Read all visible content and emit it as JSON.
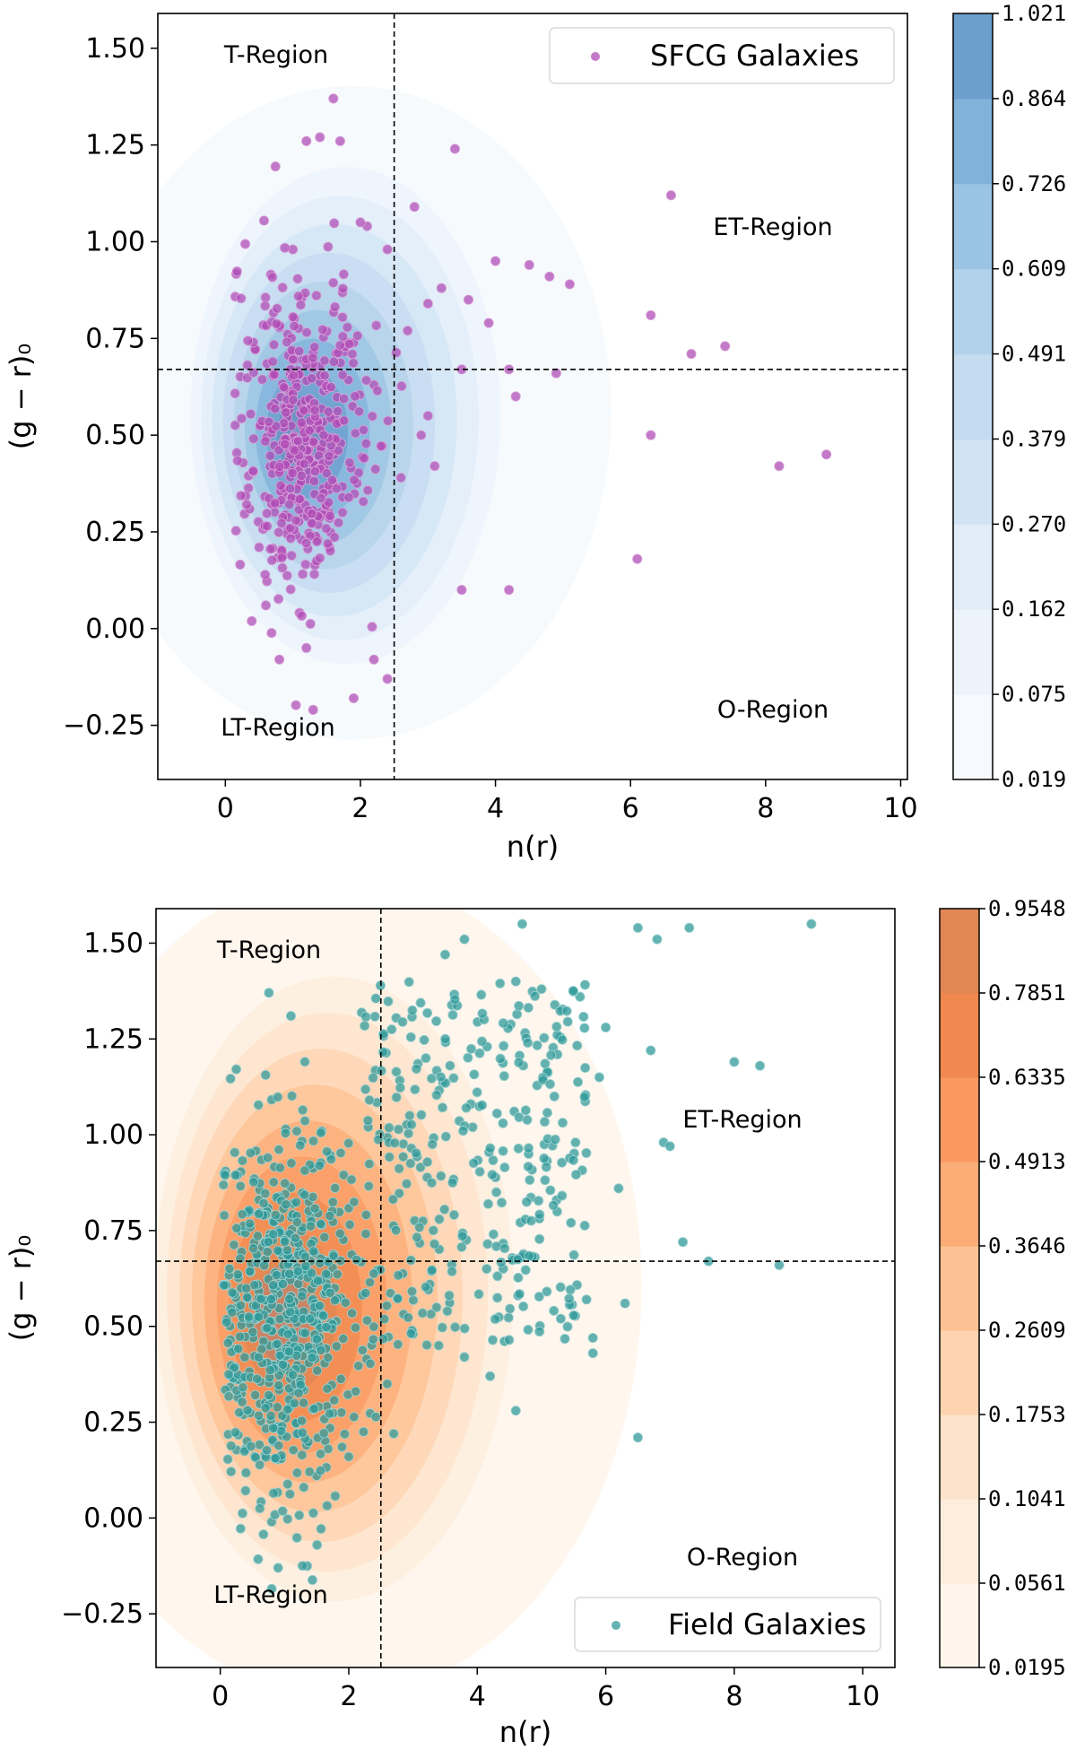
{
  "chart_data": [
    {
      "type": "scatter",
      "title": "",
      "xlabel": "n(r)",
      "ylabel": "(g − r)₀",
      "xlim": [
        -1,
        10.1
      ],
      "ylim": [
        -0.39,
        1.59
      ],
      "xticks": [
        0,
        2,
        4,
        6,
        8,
        10
      ],
      "xtick_labels": [
        "0",
        "2",
        "4",
        "6",
        "8",
        "10"
      ],
      "yticks": [
        -0.25,
        0,
        0.25,
        0.5,
        0.75,
        1.0,
        1.25,
        1.5
      ],
      "ytick_labels": [
        "−0.25",
        "0.00",
        "0.25",
        "0.50",
        "0.75",
        "1.00",
        "1.25",
        "1.50"
      ],
      "divider_x": 2.5,
      "divider_y": 0.67,
      "regions": [
        {
          "label": "T-Region",
          "x": 0.7,
          "y": 1.47
        },
        {
          "label": "ET-Region",
          "x": 8.1,
          "y": 1.02
        },
        {
          "label": "LT-Region",
          "x": 0.75,
          "y": -0.26
        },
        {
          "label": "O-Region",
          "x": 8.1,
          "y": -0.21
        }
      ],
      "legend": {
        "label": "SFCG Galaxies",
        "location": "upper right"
      },
      "point_color": "#b04cb6",
      "point_edge": "#d9a3da",
      "density_color": "#3a7ab8",
      "density_center": [
        1.15,
        0.49
      ],
      "density_spread": [
        0.78,
        0.26
      ],
      "colorbar": {
        "levels": [
          "0.019",
          "0.075",
          "0.162",
          "0.270",
          "0.379",
          "0.491",
          "0.609",
          "0.726",
          "0.864",
          "1.021"
        ],
        "colors": [
          "#f6f9fd",
          "#ecf3fb",
          "#e0ecf8",
          "#d2e4f4",
          "#c4dbf0",
          "#b2d1ea",
          "#9ac4e3",
          "#80b2da",
          "#6d9fcd",
          "#6b8fbd"
        ]
      },
      "series": [
        {
          "name": "SFCG Galaxies",
          "x": [
            1.6,
            1.2,
            1.4,
            1.7,
            3.4,
            6.6,
            2.8,
            2.1,
            2.4,
            4.0,
            4.5,
            4.8,
            5.1,
            3.2,
            3.6,
            3.9,
            6.3,
            6.9,
            7.4,
            4.2,
            3.5,
            3.0,
            4.9,
            4.3,
            6.3,
            8.9,
            8.2,
            2.9,
            6.1,
            3.5,
            4.2,
            2.4,
            1.3,
            0.8,
            0.6,
            1.2,
            1.9,
            2.2,
            0.5,
            1.0,
            2.0,
            3.0,
            2.7,
            2.6,
            3.1,
            2.2,
            1.8
          ],
          "y": [
            1.37,
            1.26,
            1.27,
            1.26,
            1.24,
            1.12,
            1.09,
            1.04,
            0.98,
            0.95,
            0.94,
            0.91,
            0.89,
            0.88,
            0.85,
            0.79,
            0.81,
            0.71,
            0.73,
            0.67,
            0.67,
            0.55,
            0.66,
            0.6,
            0.5,
            0.45,
            0.42,
            0.5,
            0.18,
            0.1,
            0.1,
            -0.13,
            -0.21,
            -0.08,
            0.06,
            -0.05,
            -0.18,
            -0.08,
            0.21,
            0.98,
            1.05,
            0.84,
            0.77,
            0.39,
            0.42,
            0.63,
            0.74
          ]
        }
      ]
    },
    {
      "type": "scatter",
      "title": "",
      "xlabel": "n(r)",
      "ylabel": "(g − r)₀",
      "xlim": [
        -1,
        10.5
      ],
      "ylim": [
        -0.39,
        1.59
      ],
      "xticks": [
        0,
        2,
        4,
        6,
        8,
        10
      ],
      "xtick_labels": [
        "0",
        "2",
        "4",
        "6",
        "8",
        "10"
      ],
      "yticks": [
        -0.25,
        0,
        0.25,
        0.5,
        0.75,
        1.0,
        1.25,
        1.5
      ],
      "ytick_labels": [
        "−0.25",
        "0.00",
        "0.25",
        "0.50",
        "0.75",
        "1.00",
        "1.25",
        "1.50"
      ],
      "divider_x": 2.5,
      "divider_y": 0.67,
      "regions": [
        {
          "label": "T-Region",
          "x": 0.7,
          "y": 1.47
        },
        {
          "label": "ET-Region",
          "x": 8.1,
          "y": 0.99
        },
        {
          "label": "LT-Region",
          "x": 0.75,
          "y": -0.24
        },
        {
          "label": "O-Region",
          "x": 8.1,
          "y": -0.14
        }
      ],
      "legend": {
        "label": "Field Galaxies",
        "location": "lower right"
      },
      "point_color": "#2f9a9a",
      "point_edge": "#a3d3d3",
      "density_color": "#e8854a",
      "density_center": [
        1.0,
        0.52
      ],
      "density_spread": [
        0.95,
        0.33
      ],
      "colorbar": {
        "levels": [
          "0.0195",
          "0.0561",
          "0.1041",
          "0.1753",
          "0.2609",
          "0.3646",
          "0.4913",
          "0.6335",
          "0.7851",
          "0.9548"
        ],
        "colors": [
          "#fff5eb",
          "#feeddc",
          "#fde3c9",
          "#fdd3b0",
          "#fdc293",
          "#fcac77",
          "#f99960",
          "#f0884f",
          "#e08754",
          "#c0826a"
        ]
      },
      "series": [
        {
          "name": "Field Galaxies",
          "x": [
            4.7,
            6.5,
            7.3,
            9.2,
            6.8,
            3.8,
            3.5,
            4.6,
            5.0,
            5.6,
            6.0,
            6.7,
            8.0,
            8.4,
            5.9,
            6.9,
            7.0,
            6.2,
            7.2,
            7.6,
            8.7,
            6.3,
            5.3,
            5.7,
            4.6,
            5.8,
            5.8,
            6.5,
            4.2,
            3.8,
            3.4,
            3.0,
            2.7,
            0.8,
            0.9,
            1.3,
            1.5,
            2.0,
            2.6,
            3.2,
            3.9,
            4.4,
            4.8,
            5.2,
            0.6,
            1.1
          ],
          "y": [
            1.55,
            1.54,
            1.54,
            1.55,
            1.51,
            1.51,
            1.47,
            1.4,
            1.38,
            1.36,
            1.28,
            1.22,
            1.19,
            1.18,
            1.15,
            0.98,
            0.97,
            0.86,
            0.72,
            0.67,
            0.66,
            0.56,
            0.52,
            0.57,
            0.28,
            0.47,
            0.43,
            0.21,
            0.37,
            0.42,
            0.45,
            0.48,
            0.22,
            -0.01,
            -0.13,
            0.08,
            0.11,
            0.16,
            0.35,
            1.2,
            1.08,
            1.03,
            0.95,
            1.1,
            0.83,
            1.31
          ]
        }
      ]
    }
  ]
}
